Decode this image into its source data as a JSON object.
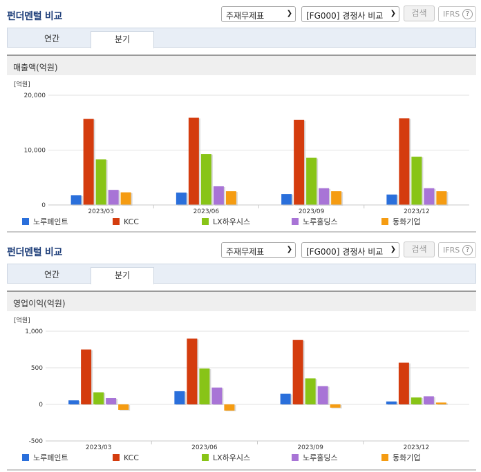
{
  "sections": [
    {
      "title": "펀더멘털 비교",
      "select1": "주재무제표",
      "select2": "[FG000] 경쟁사 비교",
      "search_label": "검색",
      "ifrs_label": "IFRS",
      "help_glyph": "?",
      "tabs": [
        "연간",
        "분기"
      ],
      "active_tab": "분기",
      "metric_title": "매출액(억원)"
    },
    {
      "title": "펀더멘털 비교",
      "select1": "주재무제표",
      "select2": "[FG000] 경쟁사 비교",
      "search_label": "검색",
      "ifrs_label": "IFRS",
      "help_glyph": "?",
      "tabs": [
        "연간",
        "분기"
      ],
      "active_tab": "분기",
      "metric_title": "영업이익(억원)"
    }
  ],
  "chart_data": [
    {
      "type": "bar",
      "unit_label": "[억원]",
      "categories": [
        "2023/03",
        "2023/06",
        "2023/09",
        "2023/12"
      ],
      "ylim": [
        0,
        20000
      ],
      "yticks": [
        0,
        10000,
        20000
      ],
      "ytick_labels": [
        "0",
        "10,000",
        "20,000"
      ],
      "grid": true,
      "legend_position": "bottom",
      "series": [
        {
          "name": "노루페인트",
          "color": "#2a6fdb",
          "values": [
            1750,
            2250,
            2000,
            1900
          ]
        },
        {
          "name": "KCC",
          "color": "#d43c0e",
          "values": [
            15700,
            15900,
            15500,
            15800
          ]
        },
        {
          "name": "LX하우시스",
          "color": "#88c417",
          "values": [
            8300,
            9300,
            8600,
            8800
          ]
        },
        {
          "name": "노루홀딩스",
          "color": "#a874d6",
          "values": [
            2750,
            3400,
            3050,
            3050
          ]
        },
        {
          "name": "동화기업",
          "color": "#f59c12",
          "values": [
            2300,
            2500,
            2500,
            2500
          ]
        }
      ]
    },
    {
      "type": "bar",
      "unit_label": "[억원]",
      "categories": [
        "2023/03",
        "2023/06",
        "2023/09",
        "2023/12"
      ],
      "ylim": [
        -500,
        1000
      ],
      "yticks": [
        -500,
        0,
        500,
        1000
      ],
      "ytick_labels": [
        "-500",
        "0",
        "500",
        "1,000"
      ],
      "grid": true,
      "legend_position": "bottom",
      "series": [
        {
          "name": "노루페인트",
          "color": "#2a6fdb",
          "values": [
            55,
            180,
            145,
            40
          ]
        },
        {
          "name": "KCC",
          "color": "#d43c0e",
          "values": [
            750,
            900,
            880,
            570
          ]
        },
        {
          "name": "LX하우시스",
          "color": "#88c417",
          "values": [
            165,
            490,
            355,
            95
          ]
        },
        {
          "name": "노루홀딩스",
          "color": "#a874d6",
          "values": [
            85,
            230,
            250,
            110
          ]
        },
        {
          "name": "동화기업",
          "color": "#f59c12",
          "values": [
            -75,
            -85,
            -45,
            25
          ]
        }
      ]
    }
  ]
}
